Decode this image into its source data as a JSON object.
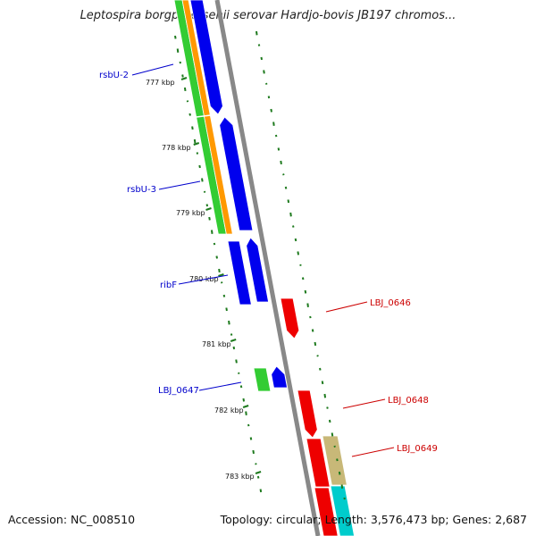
{
  "title": "Leptospira borgpetersenii serovar Hardjo-bovis JB197 chromos...",
  "footer": {
    "accession": "Accession: NC_008510",
    "summary": "Topology: circular; Length: 3,576,473 bp; Genes: 2,687"
  },
  "colors": {
    "forward_cds": "#0000ee",
    "reverse_cds": "#ee0000",
    "green_track": "#33cc33",
    "orange_track": "#ff9900",
    "olive_track": "#c8b878",
    "cyan_track": "#00cccc",
    "backbone": "#888888",
    "gc_dots": "#1e7a1e",
    "forward_label": "#0000cc",
    "reverse_label": "#cc0000"
  },
  "ruler_ticks": [
    {
      "label": "777 kbp"
    },
    {
      "label": "778 kbp"
    },
    {
      "label": "779 kbp"
    },
    {
      "label": "780 kbp"
    },
    {
      "label": "781 kbp"
    },
    {
      "label": "782 kbp"
    },
    {
      "label": "783 kbp"
    }
  ],
  "genes_forward": [
    {
      "label": "rsbU-2"
    },
    {
      "label": "rsbU-3"
    },
    {
      "label": "ribF"
    },
    {
      "label": "LBJ_0647"
    }
  ],
  "genes_reverse": [
    {
      "label": "LBJ_0646"
    },
    {
      "label": "LBJ_0648"
    },
    {
      "label": "LBJ_0649"
    }
  ]
}
